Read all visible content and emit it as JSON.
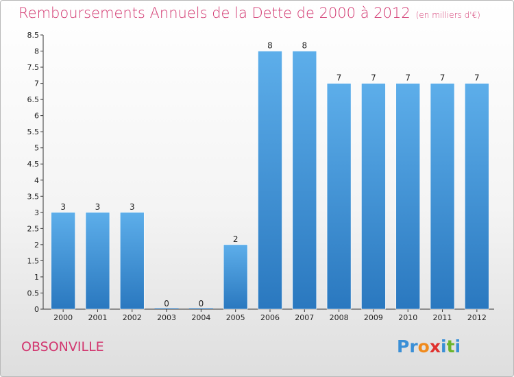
{
  "title": "Remboursements Annuels de la Dette de 2000 à 2012",
  "title_unit": "(en milliers d'€)",
  "commune": "OBSONVILLE",
  "logo": {
    "text": "Proxiti",
    "letters": [
      {
        "ch": "P",
        "color": "#3a8fd6"
      },
      {
        "ch": "r",
        "color": "#3a8fd6"
      },
      {
        "ch": "o",
        "color": "#f08a1c"
      },
      {
        "ch": "x",
        "color": "#e0312e"
      },
      {
        "ch": "i",
        "color": "#3a8fd6"
      },
      {
        "ch": "t",
        "color": "#6bb52d"
      },
      {
        "ch": "i",
        "color": "#3a8fd6"
      }
    ]
  },
  "colors": {
    "title": "#d2366f",
    "bar_top": "#5daeea",
    "bar_bottom": "#2a78bf",
    "axis": "#333333"
  },
  "chart_data": {
    "type": "bar",
    "categories": [
      "2000",
      "2001",
      "2002",
      "2003",
      "2004",
      "2005",
      "2006",
      "2007",
      "2008",
      "2009",
      "2010",
      "2011",
      "2012"
    ],
    "values": [
      3,
      3,
      3,
      0,
      0,
      2,
      8,
      8,
      7,
      7,
      7,
      7,
      7
    ],
    "data_labels": [
      "3",
      "3",
      "3",
      "0",
      "0",
      "2",
      "8",
      "8",
      "7",
      "7",
      "7",
      "7",
      "7"
    ],
    "ylim": [
      0,
      8.5
    ],
    "y_ticks": [
      0,
      0.5,
      1,
      1.5,
      2,
      2.5,
      3,
      3.5,
      4,
      4.5,
      5,
      5.5,
      6,
      6.5,
      7,
      7.5,
      8,
      8.5
    ],
    "y_tick_labels": [
      "0",
      "0.5",
      "1",
      "1.5",
      "2",
      "2.5",
      "3",
      "3.5",
      "4",
      "4.5",
      "5",
      "5.5",
      "6",
      "6.5",
      "7",
      "7.5",
      "8",
      "8.5"
    ],
    "grid": false,
    "xlabel": "",
    "ylabel": ""
  }
}
